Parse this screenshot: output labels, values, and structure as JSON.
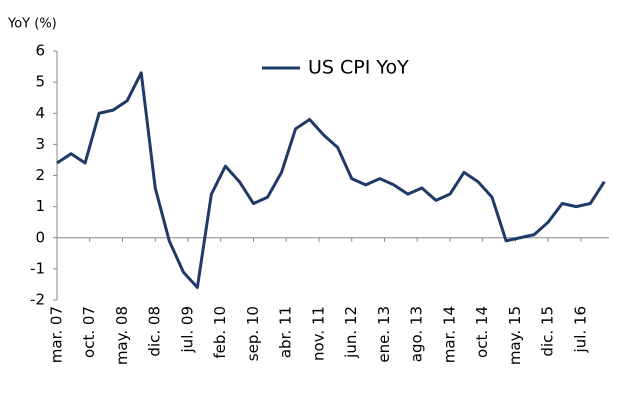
{
  "chart_data": {
    "type": "line",
    "y_label": "YoY (%)",
    "x": [
      0,
      3,
      6,
      9,
      12,
      15,
      18,
      21,
      24,
      27,
      30,
      33,
      36,
      39,
      42,
      45,
      48,
      51,
      54,
      57,
      60,
      63,
      66,
      69,
      72,
      75,
      78,
      81,
      84,
      87,
      90,
      93,
      96,
      99,
      102,
      105,
      108,
      111,
      114,
      117
    ],
    "series": [
      {
        "name": "US CPI YoY",
        "color": "#1f3a68",
        "values": [
          2.4,
          2.7,
          2.4,
          4.0,
          4.1,
          4.4,
          5.3,
          1.6,
          -0.1,
          -1.1,
          -1.6,
          1.4,
          2.3,
          1.8,
          1.1,
          1.3,
          2.1,
          3.5,
          3.8,
          3.3,
          2.9,
          1.9,
          1.7,
          1.9,
          1.7,
          1.4,
          1.6,
          1.2,
          1.4,
          2.1,
          1.8,
          1.3,
          -0.1,
          0.0,
          0.1,
          0.5,
          1.1,
          1.0,
          1.1,
          1.8
        ]
      }
    ],
    "xlim": [
      0,
      118
    ],
    "xticks": [
      {
        "value": 0,
        "label": "mar. 07"
      },
      {
        "value": 7,
        "label": "oct. 07"
      },
      {
        "value": 14,
        "label": "may. 08"
      },
      {
        "value": 21,
        "label": "dic. 08"
      },
      {
        "value": 28,
        "label": "jul. 09"
      },
      {
        "value": 35,
        "label": "feb. 10"
      },
      {
        "value": 42,
        "label": "sep. 10"
      },
      {
        "value": 49,
        "label": "abr. 11"
      },
      {
        "value": 56,
        "label": "nov. 11"
      },
      {
        "value": 63,
        "label": "jun. 12"
      },
      {
        "value": 70,
        "label": "ene. 13"
      },
      {
        "value": 77,
        "label": "ago. 13"
      },
      {
        "value": 84,
        "label": "mar. 14"
      },
      {
        "value": 91,
        "label": "oct. 14"
      },
      {
        "value": 98,
        "label": "may. 15"
      },
      {
        "value": 105,
        "label": "dic. 15"
      },
      {
        "value": 112,
        "label": "jul. 16"
      }
    ],
    "ylim": [
      -2,
      6
    ],
    "yticks": [
      -2,
      -1,
      0,
      1,
      2,
      3,
      4,
      5,
      6
    ],
    "grid": false,
    "legend": "top"
  }
}
